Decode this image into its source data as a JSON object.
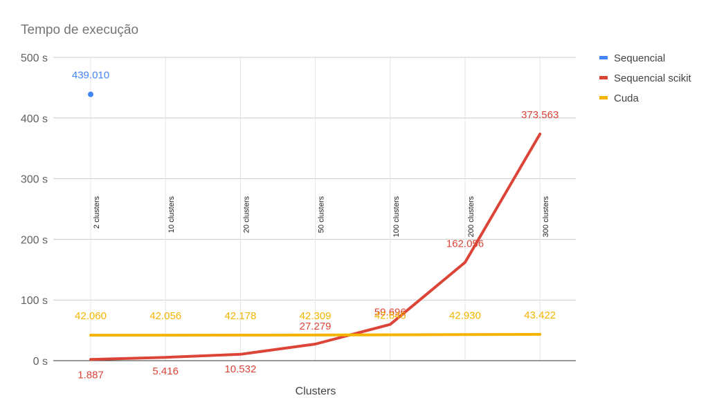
{
  "chart_data": {
    "type": "line",
    "title": "Tempo de execução",
    "xlabel": "Clusters",
    "ylabel": "",
    "categories": [
      "2 clusters",
      "10 clusters",
      "20 clusters",
      "50 clusters",
      "100 clusters",
      "200 clusters",
      "300 clusters"
    ],
    "ylim": [
      0,
      500
    ],
    "yticks": [
      0,
      100,
      200,
      300,
      400,
      500
    ],
    "ytick_labels": [
      "0 s",
      "100 s",
      "200 s",
      "300 s",
      "400 s",
      "500 s"
    ],
    "grid": true,
    "legend_position": "right",
    "series": [
      {
        "name": "Sequencial",
        "color": "#4285f4",
        "values": [
          439.01,
          null,
          null,
          null,
          null,
          null,
          null
        ],
        "labels": [
          "439.010",
          null,
          null,
          null,
          null,
          null,
          null
        ]
      },
      {
        "name": "Sequencial scikit",
        "color": "#db4437",
        "values": [
          1.887,
          5.416,
          10.532,
          27.279,
          59.696,
          162.056,
          373.563
        ],
        "labels": [
          "1.887",
          "5.416",
          "10.532",
          "27.279",
          "59.696",
          "162.056",
          "373.563"
        ]
      },
      {
        "name": "Cuda",
        "color": "#f4b400",
        "values": [
          42.06,
          42.056,
          42.178,
          42.309,
          42.646,
          42.93,
          43.422
        ],
        "labels": [
          "42.060",
          "42.056",
          "42.178",
          "42.309",
          "42.646",
          "42.930",
          "43.422"
        ]
      }
    ]
  }
}
